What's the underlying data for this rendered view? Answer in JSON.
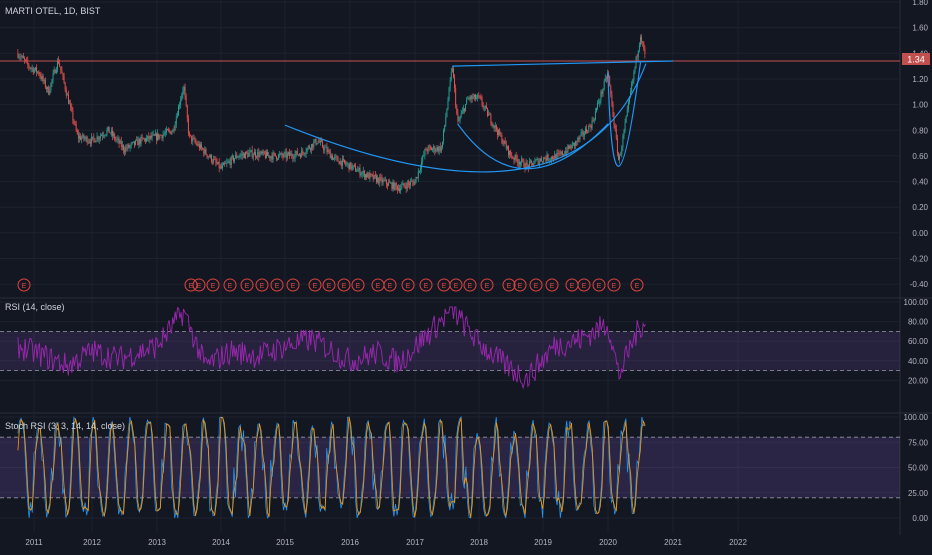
{
  "header": {
    "symbol_label": "MARTI OTEL, 1D, BIST"
  },
  "price_badge": "1.34",
  "rsi_title": "RSI (14, close)",
  "stoch_title": "Stoch RSI (3, 3, 14, 14, close)",
  "colors": {
    "background": "#131722",
    "grid": "#1e222d",
    "pane_border": "#2a2e39",
    "axis_text": "#b2b5be",
    "up": "#26a69a",
    "down": "#ef5350",
    "trendline": "#2196f3",
    "resistance": "#c0504d",
    "rsi_line": "#9c27b0",
    "rsi_band": "#7e57c2",
    "stoch_k": "#2196f3",
    "stoch_d": "#ff9800",
    "earnings": "#e0443e"
  },
  "earnings_marker_label": "E",
  "chart_data": [
    {
      "type": "line",
      "pane": "price",
      "style": "candlestick",
      "x_axis": {
        "type": "date",
        "tick_labels": [
          "2011",
          "2012",
          "2013",
          "2014",
          "2015",
          "2016",
          "2017",
          "2018",
          "2019",
          "2020",
          "2021",
          "2022"
        ]
      },
      "y_axis": {
        "ylim": [
          -0.5,
          1.8
        ],
        "tick_labels": [
          "1.80",
          "1.60",
          "1.40",
          "1.20",
          "1.00",
          "0.80",
          "0.60",
          "0.40",
          "0.20",
          "0.00",
          "-0.20",
          "-0.40"
        ]
      },
      "last_price": 1.34,
      "series": [
        {
          "values": [
            {
              "x": "2010-10",
              "y": 1.4
            },
            {
              "x": "2010-12",
              "y": 1.3
            },
            {
              "x": "2011-02",
              "y": 1.25
            },
            {
              "x": "2011-04",
              "y": 1.1
            },
            {
              "x": "2011-06",
              "y": 1.35
            },
            {
              "x": "2011-08",
              "y": 1.05
            },
            {
              "x": "2011-10",
              "y": 0.75
            },
            {
              "x": "2012-01",
              "y": 0.72
            },
            {
              "x": "2012-04",
              "y": 0.8
            },
            {
              "x": "2012-07",
              "y": 0.65
            },
            {
              "x": "2012-10",
              "y": 0.72
            },
            {
              "x": "2013-01",
              "y": 0.75
            },
            {
              "x": "2013-04",
              "y": 0.8
            },
            {
              "x": "2013-06",
              "y": 1.15
            },
            {
              "x": "2013-07",
              "y": 0.75
            },
            {
              "x": "2013-10",
              "y": 0.63
            },
            {
              "x": "2014-01",
              "y": 0.5
            },
            {
              "x": "2014-04",
              "y": 0.6
            },
            {
              "x": "2014-07",
              "y": 0.62
            },
            {
              "x": "2014-10",
              "y": 0.6
            },
            {
              "x": "2015-01",
              "y": 0.6
            },
            {
              "x": "2015-04",
              "y": 0.62
            },
            {
              "x": "2015-07",
              "y": 0.72
            },
            {
              "x": "2015-10",
              "y": 0.58
            },
            {
              "x": "2016-01",
              "y": 0.52
            },
            {
              "x": "2016-04",
              "y": 0.45
            },
            {
              "x": "2016-07",
              "y": 0.4
            },
            {
              "x": "2016-10",
              "y": 0.35
            },
            {
              "x": "2017-01",
              "y": 0.4
            },
            {
              "x": "2017-03",
              "y": 0.65
            },
            {
              "x": "2017-06",
              "y": 0.66
            },
            {
              "x": "2017-08",
              "y": 1.3
            },
            {
              "x": "2017-09",
              "y": 0.85
            },
            {
              "x": "2017-11",
              "y": 1.05
            },
            {
              "x": "2018-01",
              "y": 1.05
            },
            {
              "x": "2018-03",
              "y": 0.9
            },
            {
              "x": "2018-05",
              "y": 0.75
            },
            {
              "x": "2018-07",
              "y": 0.6
            },
            {
              "x": "2018-10",
              "y": 0.52
            },
            {
              "x": "2019-01",
              "y": 0.58
            },
            {
              "x": "2019-04",
              "y": 0.6
            },
            {
              "x": "2019-07",
              "y": 0.7
            },
            {
              "x": "2019-10",
              "y": 0.85
            },
            {
              "x": "2020-01",
              "y": 1.25
            },
            {
              "x": "2020-03",
              "y": 0.55
            },
            {
              "x": "2020-05",
              "y": 1.05
            },
            {
              "x": "2020-07",
              "y": 1.55
            },
            {
              "x": "2020-08",
              "y": 1.34
            }
          ]
        }
      ],
      "annotations": [
        {
          "kind": "horizontal_line",
          "y": 1.34,
          "label": "resistance"
        },
        {
          "kind": "trendline",
          "points": [
            {
              "x": "2017-08",
              "y": 1.3
            },
            {
              "x": "2021-01",
              "y": 1.34
            }
          ]
        },
        {
          "kind": "cup_curve",
          "points": [
            {
              "x": "2015-01",
              "y": 0.84
            },
            {
              "x": "2018-09",
              "y": 0.5
            },
            {
              "x": "2020-08",
              "y": 1.32
            }
          ]
        },
        {
          "kind": "cup_curve",
          "points": [
            {
              "x": "2017-09",
              "y": 0.85
            },
            {
              "x": "2018-10",
              "y": 0.5
            },
            {
              "x": "2020-01",
              "y": 0.85
            }
          ]
        },
        {
          "kind": "cup_curve",
          "points": [
            {
              "x": "2020-01",
              "y": 1.25
            },
            {
              "x": "2020-03",
              "y": 0.52
            },
            {
              "x": "2020-07",
              "y": 1.33
            }
          ]
        }
      ]
    },
    {
      "type": "line",
      "pane": "rsi",
      "title": "RSI (14, close)",
      "y_axis": {
        "ylim": [
          0,
          100
        ],
        "tick_labels": [
          "100.00",
          "80.00",
          "60.00",
          "40.00",
          "20.00"
        ]
      },
      "band": [
        30,
        70
      ],
      "series": [
        {
          "values": [
            {
              "x": "2010-10",
              "y": 55
            },
            {
              "x": "2011-03",
              "y": 45
            },
            {
              "x": "2011-08",
              "y": 35
            },
            {
              "x": "2012-01",
              "y": 50
            },
            {
              "x": "2012-06",
              "y": 42
            },
            {
              "x": "2013-01",
              "y": 55
            },
            {
              "x": "2013-06",
              "y": 90
            },
            {
              "x": "2013-10",
              "y": 35
            },
            {
              "x": "2014-03",
              "y": 50
            },
            {
              "x": "2014-08",
              "y": 45
            },
            {
              "x": "2015-01",
              "y": 55
            },
            {
              "x": "2015-06",
              "y": 62
            },
            {
              "x": "2016-01",
              "y": 40
            },
            {
              "x": "2016-06",
              "y": 48
            },
            {
              "x": "2016-10",
              "y": 38
            },
            {
              "x": "2017-03",
              "y": 65
            },
            {
              "x": "2017-08",
              "y": 92
            },
            {
              "x": "2018-01",
              "y": 58
            },
            {
              "x": "2018-06",
              "y": 35
            },
            {
              "x": "2018-10",
              "y": 22
            },
            {
              "x": "2019-03",
              "y": 55
            },
            {
              "x": "2019-08",
              "y": 62
            },
            {
              "x": "2020-01",
              "y": 78
            },
            {
              "x": "2020-03",
              "y": 25
            },
            {
              "x": "2020-06",
              "y": 65
            },
            {
              "x": "2020-08",
              "y": 85
            }
          ]
        }
      ]
    },
    {
      "type": "line",
      "pane": "stoch_rsi",
      "title": "Stoch RSI (3, 3, 14, 14, close)",
      "y_axis": {
        "ylim": [
          0,
          100
        ],
        "tick_labels": [
          "100.00",
          "75.00",
          "50.00",
          "25.00",
          "0.00"
        ]
      },
      "band": [
        20,
        80
      ],
      "series": [
        {
          "name": "K",
          "values": [
            {
              "x": "2011",
              "y": 80
            },
            {
              "x": "2012",
              "y": 20
            },
            {
              "x": "2013",
              "y": 90
            },
            {
              "x": "2014",
              "y": 10
            },
            {
              "x": "2015",
              "y": 85
            },
            {
              "x": "2016",
              "y": 15
            },
            {
              "x": "2017",
              "y": 95
            },
            {
              "x": "2018",
              "y": 5
            },
            {
              "x": "2019",
              "y": 90
            },
            {
              "x": "2020",
              "y": 50
            }
          ]
        },
        {
          "name": "D",
          "values": [
            {
              "x": "2011",
              "y": 75
            },
            {
              "x": "2012",
              "y": 25
            },
            {
              "x": "2013",
              "y": 85
            },
            {
              "x": "2014",
              "y": 15
            },
            {
              "x": "2015",
              "y": 80
            },
            {
              "x": "2016",
              "y": 20
            },
            {
              "x": "2017",
              "y": 90
            },
            {
              "x": "2018",
              "y": 10
            },
            {
              "x": "2019",
              "y": 85
            },
            {
              "x": "2020",
              "y": 55
            }
          ]
        }
      ]
    }
  ]
}
